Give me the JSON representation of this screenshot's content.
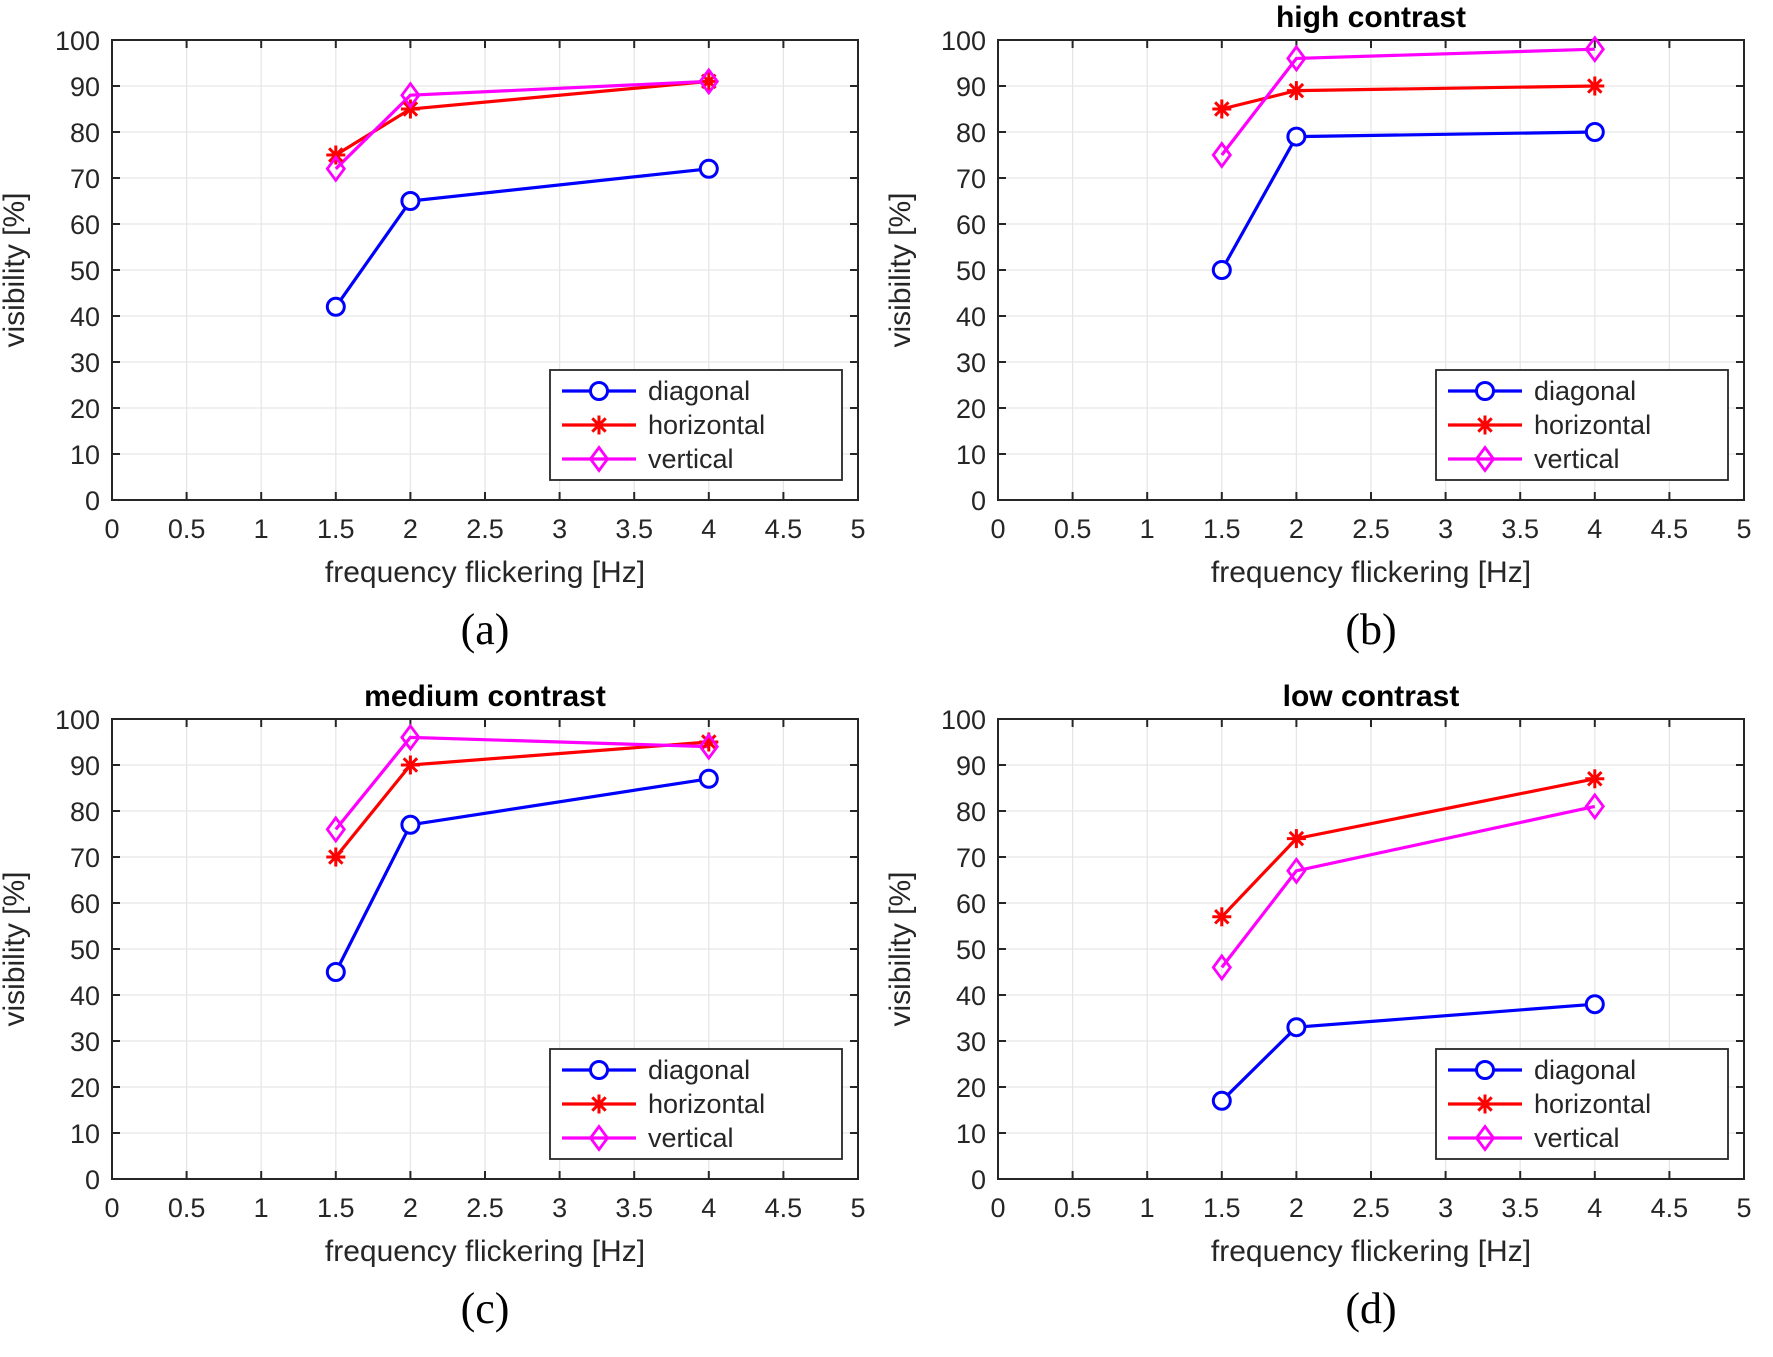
{
  "figure": {
    "background": "#ffffff",
    "shared": {
      "xlabel": "frequency flickering [Hz]",
      "ylabel": "visibility [%]",
      "xlim": [
        0,
        5
      ],
      "ylim": [
        0,
        100
      ],
      "x_ticks": [
        0,
        0.5,
        1,
        1.5,
        2,
        2.5,
        3,
        3.5,
        4,
        4.5,
        5
      ],
      "y_ticks": [
        0,
        10,
        20,
        30,
        40,
        50,
        60,
        70,
        80,
        90,
        100
      ],
      "grid": true,
      "legend_position": "bottom-right",
      "legend": [
        {
          "label": "diagonal",
          "color": "#0000ff",
          "marker": "circle"
        },
        {
          "label": "horizontal",
          "color": "#ff0000",
          "marker": "asterisk"
        },
        {
          "label": "vertical",
          "color": "#ff00ff",
          "marker": "diamond"
        }
      ],
      "colors": {
        "axis": "#262626",
        "grid": "#e6e6e6",
        "tick_text": "#262626",
        "title_text": "#000000",
        "legend_border": "#262626",
        "legend_background": "#ffffff"
      }
    }
  },
  "chart_data": [
    {
      "type": "line",
      "panel": "a",
      "title": "",
      "caption": "(a)",
      "xlabel": "frequency flickering [Hz]",
      "ylabel": "visibility [%]",
      "xlim": [
        0,
        5
      ],
      "ylim": [
        0,
        100
      ],
      "x": [
        1.5,
        2,
        4
      ],
      "series": [
        {
          "name": "diagonal",
          "values": [
            42,
            65,
            72
          ]
        },
        {
          "name": "horizontal",
          "values": [
            75,
            85,
            91
          ]
        },
        {
          "name": "vertical",
          "values": [
            72,
            88,
            91
          ]
        }
      ]
    },
    {
      "type": "line",
      "panel": "b",
      "title": "high contrast",
      "caption": "(b)",
      "xlabel": "frequency flickering [Hz]",
      "ylabel": "visibility [%]",
      "xlim": [
        0,
        5
      ],
      "ylim": [
        0,
        100
      ],
      "x": [
        1.5,
        2,
        4
      ],
      "series": [
        {
          "name": "diagonal",
          "values": [
            50,
            79,
            80
          ]
        },
        {
          "name": "horizontal",
          "values": [
            85,
            89,
            90
          ]
        },
        {
          "name": "vertical",
          "values": [
            75,
            96,
            98
          ]
        }
      ]
    },
    {
      "type": "line",
      "panel": "c",
      "title": "medium contrast",
      "caption": "(c)",
      "xlabel": "frequency flickering [Hz]",
      "ylabel": "visibility [%]",
      "xlim": [
        0,
        5
      ],
      "ylim": [
        0,
        100
      ],
      "x": [
        1.5,
        2,
        4
      ],
      "series": [
        {
          "name": "diagonal",
          "values": [
            45,
            77,
            87
          ]
        },
        {
          "name": "horizontal",
          "values": [
            70,
            90,
            95
          ]
        },
        {
          "name": "vertical",
          "values": [
            76,
            96,
            94
          ]
        }
      ]
    },
    {
      "type": "line",
      "panel": "d",
      "title": "low contrast",
      "caption": "(d)",
      "xlabel": "frequency flickering [Hz]",
      "ylabel": "visibility [%]",
      "xlim": [
        0,
        5
      ],
      "ylim": [
        0,
        100
      ],
      "x": [
        1.5,
        2,
        4
      ],
      "series": [
        {
          "name": "diagonal",
          "values": [
            17,
            33,
            38
          ]
        },
        {
          "name": "horizontal",
          "values": [
            57,
            74,
            87
          ]
        },
        {
          "name": "vertical",
          "values": [
            46,
            67,
            81
          ]
        }
      ]
    }
  ]
}
